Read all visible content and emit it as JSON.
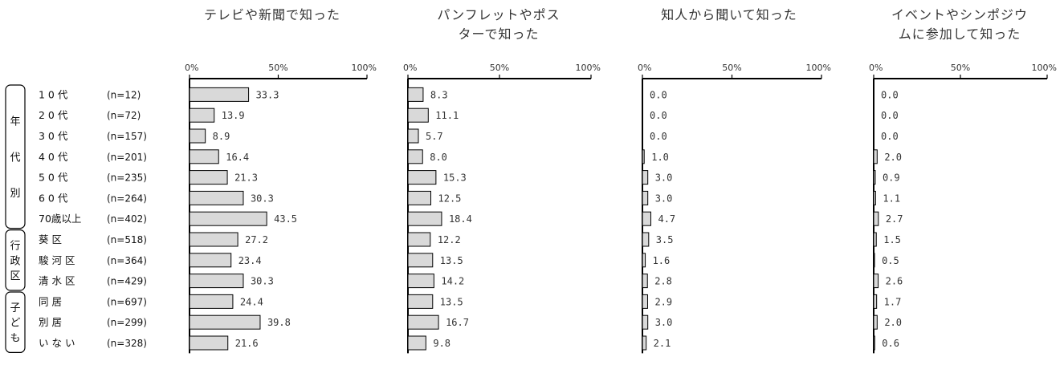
{
  "chart_data": {
    "type": "bar",
    "row_labels": [
      {
        "name": "1 0 代",
        "n": "(n=12)"
      },
      {
        "name": "2 0 代",
        "n": "(n=72)"
      },
      {
        "name": "3 0 代",
        "n": "(n=157)"
      },
      {
        "name": "4 0 代",
        "n": "(n=201)"
      },
      {
        "name": "5 0 代",
        "n": "(n=235)"
      },
      {
        "name": "6 0 代",
        "n": "(n=264)"
      },
      {
        "name": "70歳以上",
        "n": "(n=402)"
      },
      {
        "name": "葵 区",
        "n": "(n=518)"
      },
      {
        "name": "駿 河 区",
        "n": "(n=364)"
      },
      {
        "name": "清 水 区",
        "n": "(n=429)"
      },
      {
        "name": "同 居",
        "n": "(n=697)"
      },
      {
        "name": "別 居",
        "n": "(n=299)"
      },
      {
        "name": "い な い",
        "n": "(n=328)"
      }
    ],
    "groups": [
      {
        "label": "年代別",
        "start": 0,
        "end": 6
      },
      {
        "label": "行政区",
        "start": 7,
        "end": 9
      },
      {
        "label": "子ども",
        "start": 10,
        "end": 12
      }
    ],
    "xlim": [
      0,
      100
    ],
    "ticks": [
      "0%",
      "50%",
      "100%"
    ],
    "series": [
      {
        "title_lines": [
          "テレビや新聞で知った"
        ],
        "values": [
          33.3,
          13.9,
          8.9,
          16.4,
          21.3,
          30.3,
          43.5,
          27.2,
          23.4,
          30.3,
          24.4,
          39.8,
          21.6
        ],
        "labels": [
          "33.3",
          "13.9",
          "8.9",
          "16.4",
          "21.3",
          "30.3",
          "43.5",
          "27.2",
          "23.4",
          "30.3",
          "24.4",
          "39.8",
          "21.6"
        ]
      },
      {
        "title_lines": [
          "パンフレットやポス",
          "ターで知った"
        ],
        "values": [
          8.3,
          11.1,
          5.7,
          8.0,
          15.3,
          12.5,
          18.4,
          12.2,
          13.5,
          14.2,
          13.5,
          16.7,
          9.8
        ],
        "labels": [
          "8.3",
          "11.1",
          "5.7",
          "8.0",
          "15.3",
          "12.5",
          "18.4",
          "12.2",
          "13.5",
          "14.2",
          "13.5",
          "16.7",
          "9.8"
        ]
      },
      {
        "title_lines": [
          "知人から聞いて知った"
        ],
        "values": [
          0.0,
          0.0,
          0.0,
          1.0,
          3.0,
          3.0,
          4.7,
          3.5,
          1.6,
          2.8,
          2.9,
          3.0,
          2.1
        ],
        "labels": [
          "0.0",
          "0.0",
          "0.0",
          "1.0",
          "3.0",
          "3.0",
          "4.7",
          "3.5",
          "1.6",
          "2.8",
          "2.9",
          "3.0",
          "2.1"
        ]
      },
      {
        "title_lines": [
          "イベントやシンポジウ",
          "ムに参加して知った"
        ],
        "values": [
          0.0,
          0.0,
          0.0,
          2.0,
          0.9,
          1.1,
          2.7,
          1.5,
          0.5,
          2.6,
          1.7,
          2.0,
          0.6
        ],
        "labels": [
          "0.0",
          "0.0",
          "0.0",
          "2.0",
          "0.9",
          "1.1",
          "2.7",
          "1.5",
          "0.5",
          "2.6",
          "1.7",
          "2.0",
          "0.6"
        ]
      }
    ],
    "bar_fill": "#d9d9d9",
    "bar_stroke": "#000000"
  }
}
